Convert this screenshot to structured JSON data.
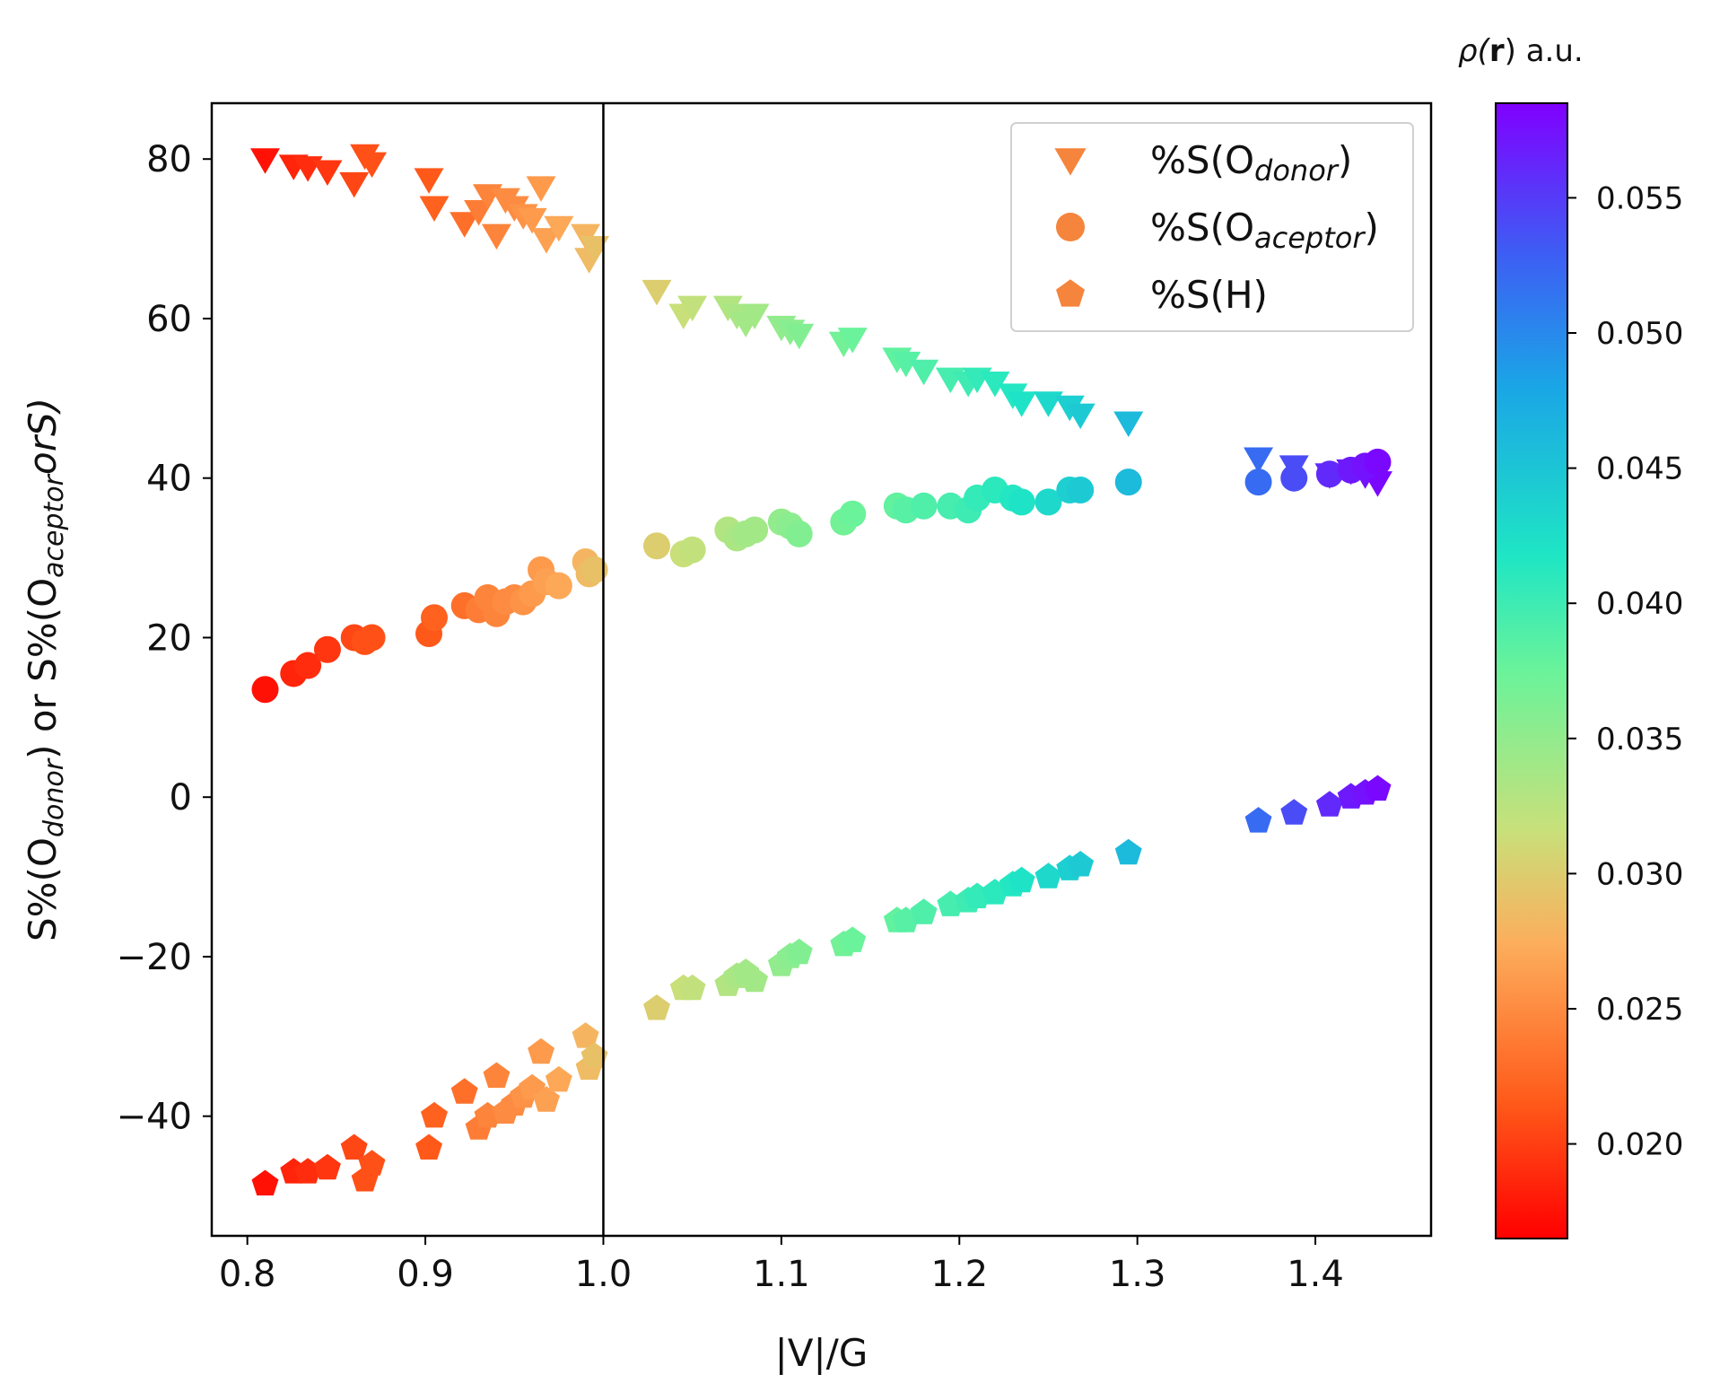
{
  "chart_data": {
    "type": "scatter",
    "xlabel": "|V|/G",
    "ylabel_parts": [
      "S%(O",
      "donor",
      ") or S%(O",
      "aceptor",
      "orS)"
    ],
    "xlim": [
      0.78,
      1.465
    ],
    "ylim": [
      -55,
      87
    ],
    "xticks": [
      0.8,
      0.9,
      1.0,
      1.1,
      1.2,
      1.3,
      1.4
    ],
    "xtick_labels": [
      "0.8",
      "0.9",
      "1.0",
      "1.1",
      "1.2",
      "1.3",
      "1.4"
    ],
    "yticks": [
      80,
      60,
      40,
      20,
      0,
      -20,
      -40
    ],
    "ytick_labels": [
      "80",
      "60",
      "40",
      "20",
      "0",
      "−20",
      "−40"
    ],
    "vline_x": 1.0,
    "legend": {
      "position": "top-right",
      "entries": [
        {
          "series": "donor",
          "marker": "triangle-down",
          "parts": [
            "%S(O",
            "donor",
            ")"
          ]
        },
        {
          "series": "aceptor",
          "marker": "circle",
          "parts": [
            "%S(O",
            "aceptor",
            ")"
          ]
        },
        {
          "series": "h",
          "marker": "pentagon",
          "parts": [
            "%S(H)",
            "",
            ""
          ]
        }
      ],
      "color": "#f5843c"
    },
    "colorbar": {
      "title_parts": [
        "ρ(",
        "r",
        ") a.u."
      ],
      "range": [
        0.0165,
        0.0585
      ],
      "ticks": [
        0.02,
        0.025,
        0.03,
        0.035,
        0.04,
        0.045,
        0.05,
        0.055
      ],
      "tick_labels": [
        "0.020",
        "0.025",
        "0.030",
        "0.035",
        "0.040",
        "0.045",
        "0.050",
        "0.055"
      ],
      "colormap": "rainbow"
    },
    "series": [
      {
        "name": "%S(O donor)",
        "id": "donor",
        "marker": "triangle-down",
        "points": [
          [
            0.81,
            80.0,
            0.0175
          ],
          [
            0.826,
            79.2,
            0.0185
          ],
          [
            0.834,
            79.0,
            0.019
          ],
          [
            0.845,
            78.5,
            0.0195
          ],
          [
            0.86,
            77.0,
            0.0205
          ],
          [
            0.866,
            80.5,
            0.021
          ],
          [
            0.87,
            79.5,
            0.021
          ],
          [
            0.902,
            77.5,
            0.0215
          ],
          [
            0.905,
            74.0,
            0.022
          ],
          [
            0.922,
            72.0,
            0.023
          ],
          [
            0.93,
            73.5,
            0.024
          ],
          [
            0.935,
            75.5,
            0.0245
          ],
          [
            0.94,
            70.5,
            0.0245
          ],
          [
            0.945,
            75.0,
            0.025
          ],
          [
            0.95,
            74.0,
            0.025
          ],
          [
            0.955,
            73.0,
            0.0255
          ],
          [
            0.96,
            72.5,
            0.026
          ],
          [
            0.965,
            76.5,
            0.026
          ],
          [
            0.968,
            70.0,
            0.0265
          ],
          [
            0.975,
            71.5,
            0.027
          ],
          [
            0.99,
            70.5,
            0.028
          ],
          [
            0.992,
            67.5,
            0.0285
          ],
          [
            0.995,
            69.0,
            0.029
          ],
          [
            1.03,
            63.5,
            0.03
          ],
          [
            1.045,
            60.5,
            0.0315
          ],
          [
            1.05,
            61.5,
            0.032
          ],
          [
            1.07,
            61.5,
            0.033
          ],
          [
            1.075,
            60.5,
            0.0335
          ],
          [
            1.08,
            59.5,
            0.034
          ],
          [
            1.085,
            60.5,
            0.034
          ],
          [
            1.1,
            59.0,
            0.035
          ],
          [
            1.105,
            58.5,
            0.0355
          ],
          [
            1.11,
            58.0,
            0.036
          ],
          [
            1.135,
            57.0,
            0.037
          ],
          [
            1.14,
            57.5,
            0.0375
          ],
          [
            1.165,
            55.0,
            0.038
          ],
          [
            1.17,
            54.5,
            0.0385
          ],
          [
            1.18,
            53.5,
            0.039
          ],
          [
            1.195,
            52.5,
            0.0395
          ],
          [
            1.205,
            52.0,
            0.04
          ],
          [
            1.21,
            52.5,
            0.0405
          ],
          [
            1.22,
            52.0,
            0.041
          ],
          [
            1.23,
            50.5,
            0.0415
          ],
          [
            1.235,
            49.5,
            0.042
          ],
          [
            1.25,
            49.5,
            0.043
          ],
          [
            1.262,
            49.0,
            0.044
          ],
          [
            1.268,
            48.0,
            0.0445
          ],
          [
            1.295,
            47.0,
            0.046
          ],
          [
            1.368,
            42.5,
            0.052
          ],
          [
            1.388,
            41.5,
            0.054
          ],
          [
            1.408,
            40.5,
            0.056
          ],
          [
            1.42,
            41.0,
            0.057
          ],
          [
            1.428,
            40.5,
            0.0575
          ],
          [
            1.435,
            39.5,
            0.058
          ]
        ]
      },
      {
        "name": "%S(O aceptor)",
        "id": "aceptor",
        "marker": "circle",
        "points": [
          [
            0.81,
            13.5,
            0.0175
          ],
          [
            0.826,
            15.5,
            0.0185
          ],
          [
            0.834,
            16.5,
            0.019
          ],
          [
            0.845,
            18.5,
            0.0195
          ],
          [
            0.86,
            20.0,
            0.0205
          ],
          [
            0.866,
            19.5,
            0.021
          ],
          [
            0.87,
            20.0,
            0.021
          ],
          [
            0.902,
            20.5,
            0.0215
          ],
          [
            0.905,
            22.5,
            0.022
          ],
          [
            0.922,
            24.0,
            0.023
          ],
          [
            0.93,
            23.5,
            0.024
          ],
          [
            0.935,
            25.0,
            0.0245
          ],
          [
            0.94,
            23.0,
            0.0245
          ],
          [
            0.945,
            24.5,
            0.025
          ],
          [
            0.95,
            25.0,
            0.025
          ],
          [
            0.955,
            24.5,
            0.0255
          ],
          [
            0.96,
            25.5,
            0.026
          ],
          [
            0.965,
            28.5,
            0.026
          ],
          [
            0.968,
            27.0,
            0.0265
          ],
          [
            0.975,
            26.5,
            0.027
          ],
          [
            0.99,
            29.5,
            0.028
          ],
          [
            0.992,
            28.0,
            0.0285
          ],
          [
            0.995,
            28.5,
            0.029
          ],
          [
            1.03,
            31.5,
            0.03
          ],
          [
            1.045,
            30.5,
            0.0315
          ],
          [
            1.05,
            31.0,
            0.032
          ],
          [
            1.07,
            33.5,
            0.033
          ],
          [
            1.075,
            32.5,
            0.0335
          ],
          [
            1.08,
            33.0,
            0.034
          ],
          [
            1.085,
            33.5,
            0.034
          ],
          [
            1.1,
            34.5,
            0.035
          ],
          [
            1.105,
            34.0,
            0.0355
          ],
          [
            1.11,
            33.0,
            0.036
          ],
          [
            1.135,
            34.5,
            0.037
          ],
          [
            1.14,
            35.5,
            0.0375
          ],
          [
            1.165,
            36.5,
            0.038
          ],
          [
            1.17,
            36.0,
            0.0385
          ],
          [
            1.18,
            36.5,
            0.039
          ],
          [
            1.195,
            36.5,
            0.0395
          ],
          [
            1.205,
            36.0,
            0.04
          ],
          [
            1.21,
            37.5,
            0.0405
          ],
          [
            1.22,
            38.5,
            0.041
          ],
          [
            1.23,
            37.5,
            0.0415
          ],
          [
            1.235,
            37.0,
            0.042
          ],
          [
            1.25,
            37.0,
            0.043
          ],
          [
            1.262,
            38.5,
            0.044
          ],
          [
            1.268,
            38.5,
            0.0445
          ],
          [
            1.295,
            39.5,
            0.046
          ],
          [
            1.368,
            39.5,
            0.052
          ],
          [
            1.388,
            40.0,
            0.054
          ],
          [
            1.408,
            40.5,
            0.056
          ],
          [
            1.42,
            41.0,
            0.057
          ],
          [
            1.428,
            41.5,
            0.0575
          ],
          [
            1.435,
            42.0,
            0.058
          ]
        ]
      },
      {
        "name": "%S(H)",
        "id": "h",
        "marker": "pentagon",
        "points": [
          [
            0.81,
            -48.5,
            0.0175
          ],
          [
            0.826,
            -47.0,
            0.0185
          ],
          [
            0.834,
            -47.0,
            0.019
          ],
          [
            0.845,
            -46.5,
            0.0195
          ],
          [
            0.86,
            -44.0,
            0.0205
          ],
          [
            0.866,
            -48.0,
            0.021
          ],
          [
            0.87,
            -46.0,
            0.021
          ],
          [
            0.902,
            -44.0,
            0.0215
          ],
          [
            0.905,
            -40.0,
            0.022
          ],
          [
            0.922,
            -37.0,
            0.023
          ],
          [
            0.93,
            -41.5,
            0.024
          ],
          [
            0.935,
            -40.0,
            0.0245
          ],
          [
            0.94,
            -35.0,
            0.0245
          ],
          [
            0.945,
            -39.5,
            0.025
          ],
          [
            0.95,
            -38.5,
            0.025
          ],
          [
            0.955,
            -37.5,
            0.0255
          ],
          [
            0.96,
            -36.5,
            0.026
          ],
          [
            0.965,
            -32.0,
            0.026
          ],
          [
            0.968,
            -38.0,
            0.0265
          ],
          [
            0.975,
            -35.5,
            0.027
          ],
          [
            0.99,
            -30.0,
            0.028
          ],
          [
            0.992,
            -34.0,
            0.0285
          ],
          [
            0.995,
            -32.5,
            0.029
          ],
          [
            1.03,
            -26.5,
            0.03
          ],
          [
            1.045,
            -24.0,
            0.0315
          ],
          [
            1.05,
            -24.0,
            0.032
          ],
          [
            1.07,
            -23.5,
            0.033
          ],
          [
            1.075,
            -22.5,
            0.0335
          ],
          [
            1.08,
            -22.0,
            0.034
          ],
          [
            1.085,
            -23.0,
            0.034
          ],
          [
            1.1,
            -21.0,
            0.035
          ],
          [
            1.105,
            -20.0,
            0.0355
          ],
          [
            1.11,
            -19.5,
            0.036
          ],
          [
            1.135,
            -18.5,
            0.037
          ],
          [
            1.14,
            -18.0,
            0.0375
          ],
          [
            1.165,
            -15.5,
            0.038
          ],
          [
            1.17,
            -15.5,
            0.0385
          ],
          [
            1.18,
            -14.5,
            0.039
          ],
          [
            1.195,
            -13.5,
            0.0395
          ],
          [
            1.205,
            -13.0,
            0.04
          ],
          [
            1.21,
            -12.5,
            0.0405
          ],
          [
            1.22,
            -12.0,
            0.041
          ],
          [
            1.23,
            -11.0,
            0.0415
          ],
          [
            1.235,
            -10.5,
            0.042
          ],
          [
            1.25,
            -10.0,
            0.043
          ],
          [
            1.262,
            -9.0,
            0.044
          ],
          [
            1.268,
            -8.5,
            0.0445
          ],
          [
            1.295,
            -7.0,
            0.046
          ],
          [
            1.368,
            -3.0,
            0.052
          ],
          [
            1.388,
            -2.0,
            0.054
          ],
          [
            1.408,
            -1.0,
            0.056
          ],
          [
            1.42,
            0.0,
            0.057
          ],
          [
            1.428,
            0.5,
            0.0575
          ],
          [
            1.435,
            1.0,
            0.058
          ]
        ]
      }
    ]
  }
}
